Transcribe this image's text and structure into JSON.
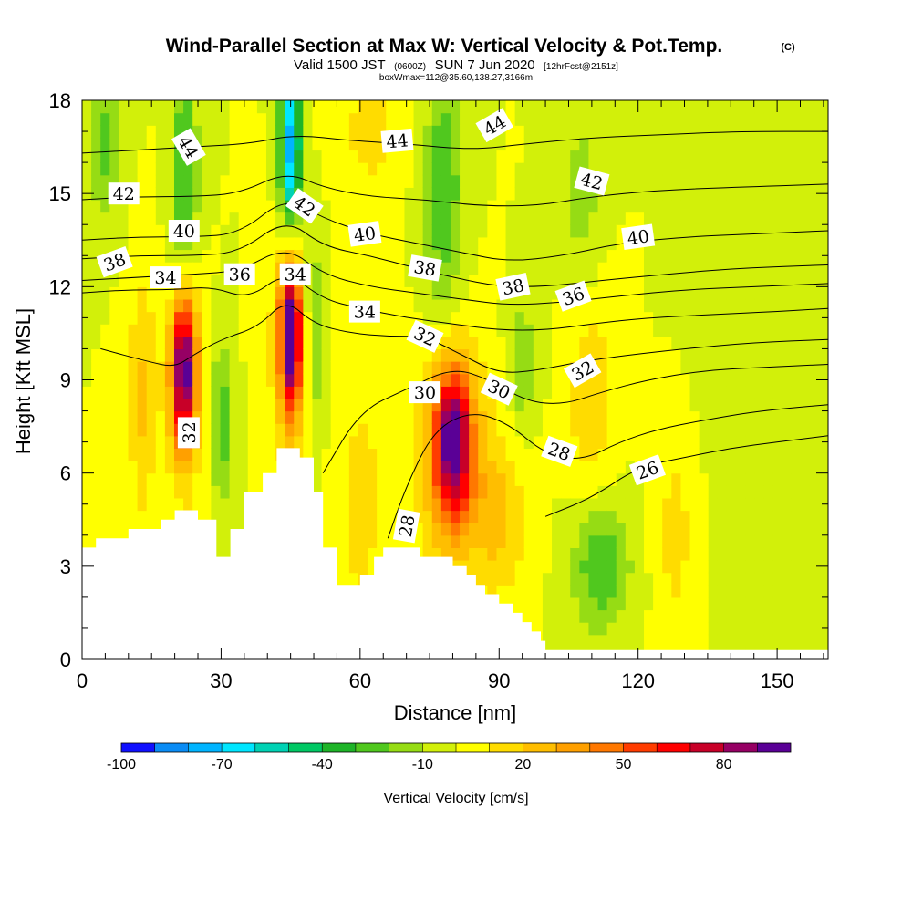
{
  "chart_data": {
    "type": "heatmap",
    "title": "Wind-Parallel Section at Max W: Vertical Velocity & Pot.Temp.",
    "title_tag": "(C)",
    "subtitle": {
      "prefix": "Valid 1500 JST",
      "utc": "(0600Z)",
      "date": "SUN 7 Jun 2020",
      "forecast": "[12hrFcst@2151z]"
    },
    "subtitle2": "boxWmax=112@35.60,138.27,3166m",
    "xlabel": "Distance [nm]",
    "ylabel": "Height [Kft MSL]",
    "xlim": [
      0,
      161
    ],
    "ylim": [
      0,
      18
    ],
    "x_ticks": [
      "0",
      "30",
      "60",
      "90",
      "120",
      "150"
    ],
    "x_tick_values": [
      0,
      30,
      60,
      90,
      120,
      150
    ],
    "y_ticks": [
      "0",
      "3",
      "6",
      "9",
      "12",
      "15",
      "18"
    ],
    "y_tick_values": [
      0,
      3,
      6,
      9,
      12,
      15,
      18
    ],
    "colorbar": {
      "label": "Vertical Velocity [cm/s]",
      "min": -100,
      "max": 100,
      "step": 10,
      "tick_labels": [
        "-100",
        "-70",
        "-40",
        "-10",
        "20",
        "50",
        "80"
      ],
      "tick_values": [
        -100,
        -70,
        -40,
        -10,
        20,
        50,
        80
      ],
      "colors": [
        "#1010ff",
        "#0a8cf5",
        "#00b4ff",
        "#00e6ff",
        "#00d2b4",
        "#00c864",
        "#1eb428",
        "#50c81e",
        "#96dc14",
        "#d2f00a",
        "#ffff00",
        "#ffdc00",
        "#ffbe00",
        "#ffa000",
        "#ff7800",
        "#ff3c00",
        "#ff0000",
        "#c80028",
        "#960064",
        "#5a0096"
      ]
    },
    "background_w": 0,
    "w_features": [
      {
        "x": 22,
        "z": 9.5,
        "sx": 2.5,
        "sz": 2.5,
        "w": 80
      },
      {
        "x": 22,
        "z": 9,
        "sx": 4,
        "sz": 3.5,
        "w": 30
      },
      {
        "x": 13,
        "z": 8.5,
        "sx": 3,
        "sz": 4,
        "w": 22
      },
      {
        "x": 45,
        "z": 10.5,
        "sx": 2.2,
        "sz": 2.5,
        "w": 80
      },
      {
        "x": 45,
        "z": 10,
        "sx": 4,
        "sz": 3.5,
        "w": 30
      },
      {
        "x": 80,
        "z": 7,
        "sx": 4,
        "sz": 2.5,
        "w": 75
      },
      {
        "x": 80,
        "z": 6.5,
        "sx": 8,
        "sz": 3.5,
        "w": 30
      },
      {
        "x": 60,
        "z": 5,
        "sx": 4,
        "sz": 3,
        "w": 20
      },
      {
        "x": 110,
        "z": 8.5,
        "sx": 5,
        "sz": 3,
        "w": 20
      },
      {
        "x": 128,
        "z": 4,
        "sx": 4,
        "sz": 3,
        "w": 15
      },
      {
        "x": 90,
        "z": 4.5,
        "sx": 6,
        "sz": 2.5,
        "w": 20
      },
      {
        "x": 45,
        "z": 16.5,
        "sx": 2.2,
        "sz": 3,
        "w": -75
      },
      {
        "x": 22,
        "z": 15,
        "sx": 3,
        "sz": 5,
        "w": -30
      },
      {
        "x": 30,
        "z": 7.5,
        "sx": 2,
        "sz": 2.5,
        "w": -30
      },
      {
        "x": 50,
        "z": 10.5,
        "sx": 2,
        "sz": 3,
        "w": -25
      },
      {
        "x": 78,
        "z": 15,
        "sx": 4,
        "sz": 4,
        "w": -30
      },
      {
        "x": 112,
        "z": 3,
        "sx": 6,
        "sz": 2,
        "w": -30
      },
      {
        "x": 108,
        "z": 15,
        "sx": 4,
        "sz": 3,
        "w": -15
      },
      {
        "x": 5,
        "z": 16.5,
        "sx": 4,
        "sz": 2,
        "w": -25
      },
      {
        "x": 95,
        "z": 9.5,
        "sx": 3,
        "sz": 2,
        "w": -20
      },
      {
        "x": 150,
        "z": 9,
        "sx": 12,
        "sz": 5,
        "w": -8
      },
      {
        "x": 62,
        "z": 17,
        "sx": 6,
        "sz": 2,
        "w": 15
      }
    ],
    "terrain": [
      [
        0,
        3.6
      ],
      [
        3,
        3.6
      ],
      [
        3,
        3.9
      ],
      [
        10,
        3.9
      ],
      [
        10,
        4.2
      ],
      [
        17,
        4.2
      ],
      [
        17,
        4.5
      ],
      [
        20,
        4.5
      ],
      [
        20,
        4.8
      ],
      [
        25,
        4.8
      ],
      [
        25,
        4.5
      ],
      [
        29,
        4.5
      ],
      [
        29,
        3.3
      ],
      [
        32,
        3.3
      ],
      [
        32,
        4.2
      ],
      [
        35,
        4.2
      ],
      [
        35,
        5.4
      ],
      [
        39,
        5.4
      ],
      [
        39,
        6.0
      ],
      [
        42,
        6.0
      ],
      [
        42,
        6.8
      ],
      [
        45,
        6.8
      ],
      [
        45,
        6.8
      ],
      [
        47,
        6.8
      ],
      [
        47,
        6.5
      ],
      [
        50,
        6.5
      ],
      [
        50,
        5.4
      ],
      [
        52,
        5.4
      ],
      [
        52,
        3.6
      ],
      [
        55,
        3.6
      ],
      [
        55,
        2.4
      ],
      [
        60,
        2.4
      ],
      [
        60,
        2.7
      ],
      [
        63,
        2.7
      ],
      [
        63,
        3.3
      ],
      [
        65,
        3.3
      ],
      [
        65,
        3.6
      ],
      [
        73,
        3.6
      ],
      [
        73,
        3.3
      ],
      [
        80,
        3.3
      ],
      [
        80,
        3.0
      ],
      [
        83,
        3.0
      ],
      [
        83,
        2.7
      ],
      [
        85,
        2.7
      ],
      [
        85,
        2.4
      ],
      [
        87,
        2.4
      ],
      [
        87,
        2.1
      ],
      [
        90,
        2.1
      ],
      [
        90,
        1.8
      ],
      [
        93,
        1.8
      ],
      [
        93,
        1.5
      ],
      [
        95,
        1.5
      ],
      [
        95,
        1.2
      ],
      [
        97,
        1.2
      ],
      [
        97,
        0.9
      ],
      [
        99,
        0.9
      ],
      [
        99,
        0.6
      ],
      [
        100,
        0.6
      ],
      [
        100,
        0.3
      ],
      [
        161,
        0.3
      ]
    ],
    "theta_contours": [
      {
        "value": 26,
        "points": [
          [
            100,
            4.6
          ],
          [
            110,
            5.2
          ],
          [
            120,
            6.2
          ],
          [
            130,
            6.5
          ],
          [
            140,
            6.8
          ],
          [
            150,
            7.0
          ],
          [
            161,
            7.2
          ]
        ]
      },
      {
        "value": 28,
        "points": [
          [
            66,
            3.9
          ],
          [
            70,
            5.6
          ],
          [
            76,
            7.4
          ],
          [
            84,
            8.0
          ],
          [
            92,
            7.6
          ],
          [
            100,
            6.6
          ],
          [
            108,
            6.4
          ],
          [
            116,
            7.0
          ],
          [
            124,
            7.4
          ],
          [
            134,
            7.7
          ],
          [
            146,
            8.0
          ],
          [
            161,
            8.2
          ]
        ]
      },
      {
        "value": 30,
        "points": [
          [
            52,
            6.0
          ],
          [
            60,
            8.0
          ],
          [
            70,
            8.7
          ],
          [
            80,
            9.4
          ],
          [
            88,
            9.0
          ],
          [
            96,
            8.3
          ],
          [
            104,
            8.2
          ],
          [
            112,
            8.6
          ],
          [
            122,
            9.0
          ],
          [
            134,
            9.3
          ],
          [
            146,
            9.4
          ],
          [
            161,
            9.5
          ]
        ]
      },
      {
        "value": 32,
        "points": [
          [
            4,
            10.0
          ],
          [
            14,
            9.6
          ],
          [
            20,
            9.4
          ],
          [
            24,
            9.8
          ],
          [
            30,
            10.3
          ],
          [
            38,
            10.7
          ],
          [
            44,
            11.6
          ],
          [
            50,
            10.8
          ],
          [
            58,
            10.5
          ],
          [
            66,
            10.4
          ],
          [
            74,
            10.4
          ],
          [
            82,
            9.8
          ],
          [
            90,
            9.2
          ],
          [
            98,
            9.3
          ],
          [
            108,
            9.6
          ],
          [
            118,
            9.8
          ],
          [
            130,
            10.0
          ],
          [
            145,
            10.2
          ],
          [
            161,
            10.3
          ]
        ]
      },
      {
        "value": 34,
        "points": [
          [
            0,
            11.8
          ],
          [
            10,
            11.9
          ],
          [
            20,
            11.9
          ],
          [
            28,
            12.0
          ],
          [
            36,
            11.6
          ],
          [
            44,
            12.5
          ],
          [
            52,
            11.6
          ],
          [
            60,
            11.3
          ],
          [
            70,
            11.0
          ],
          [
            80,
            10.8
          ],
          [
            90,
            10.6
          ],
          [
            100,
            10.6
          ],
          [
            110,
            10.8
          ],
          [
            122,
            11.0
          ],
          [
            136,
            11.1
          ],
          [
            150,
            11.2
          ],
          [
            161,
            11.3
          ]
        ]
      },
      {
        "value": 36,
        "points": [
          [
            0,
            12.2
          ],
          [
            12,
            12.3
          ],
          [
            24,
            12.4
          ],
          [
            34,
            12.5
          ],
          [
            44,
            13.3
          ],
          [
            52,
            12.4
          ],
          [
            62,
            12.0
          ],
          [
            72,
            11.8
          ],
          [
            82,
            11.6
          ],
          [
            92,
            11.4
          ],
          [
            104,
            11.5
          ],
          [
            116,
            11.7
          ],
          [
            130,
            11.9
          ],
          [
            145,
            12.0
          ],
          [
            161,
            12.1
          ]
        ]
      },
      {
        "value": 38,
        "points": [
          [
            0,
            12.9
          ],
          [
            12,
            13.0
          ],
          [
            24,
            13.0
          ],
          [
            34,
            13.1
          ],
          [
            44,
            14.2
          ],
          [
            52,
            13.3
          ],
          [
            62,
            13.0
          ],
          [
            72,
            12.6
          ],
          [
            80,
            12.3
          ],
          [
            90,
            12.0
          ],
          [
            100,
            12.0
          ],
          [
            112,
            12.2
          ],
          [
            126,
            12.4
          ],
          [
            142,
            12.6
          ],
          [
            161,
            12.7
          ]
        ]
      },
      {
        "value": 40,
        "points": [
          [
            0,
            13.5
          ],
          [
            12,
            13.6
          ],
          [
            24,
            13.6
          ],
          [
            34,
            13.7
          ],
          [
            44,
            14.9
          ],
          [
            52,
            14.2
          ],
          [
            62,
            13.7
          ],
          [
            72,
            13.4
          ],
          [
            82,
            13.1
          ],
          [
            92,
            12.8
          ],
          [
            104,
            13.0
          ],
          [
            116,
            13.4
          ],
          [
            130,
            13.6
          ],
          [
            145,
            13.7
          ],
          [
            161,
            13.8
          ]
        ]
      },
      {
        "value": 42,
        "points": [
          [
            0,
            14.8
          ],
          [
            12,
            14.9
          ],
          [
            24,
            14.9
          ],
          [
            34,
            15.0
          ],
          [
            44,
            15.7
          ],
          [
            52,
            15.2
          ],
          [
            62,
            14.9
          ],
          [
            74,
            14.8
          ],
          [
            86,
            14.6
          ],
          [
            98,
            14.6
          ],
          [
            110,
            14.9
          ],
          [
            124,
            15.1
          ],
          [
            140,
            15.2
          ],
          [
            161,
            15.3
          ]
        ]
      },
      {
        "value": 44,
        "points": [
          [
            0,
            16.3
          ],
          [
            12,
            16.4
          ],
          [
            24,
            16.5
          ],
          [
            36,
            16.6
          ],
          [
            46,
            16.9
          ],
          [
            58,
            16.7
          ],
          [
            70,
            16.6
          ],
          [
            84,
            16.4
          ],
          [
            96,
            16.6
          ],
          [
            110,
            16.8
          ],
          [
            126,
            16.9
          ],
          [
            142,
            17.0
          ],
          [
            161,
            17.0
          ]
        ]
      }
    ],
    "contour_labels": [
      {
        "text": "44",
        "x": 23,
        "z": 16.5,
        "rotate": 60
      },
      {
        "text": "44",
        "x": 68,
        "z": 16.7,
        "rotate": -5
      },
      {
        "text": "44",
        "x": 89,
        "z": 17.2,
        "rotate": -30
      },
      {
        "text": "42",
        "x": 9,
        "z": 15.0,
        "rotate": 0
      },
      {
        "text": "42",
        "x": 48,
        "z": 14.6,
        "rotate": 35
      },
      {
        "text": "42",
        "x": 110,
        "z": 15.4,
        "rotate": 15
      },
      {
        "text": "40",
        "x": 22,
        "z": 13.8,
        "rotate": 0
      },
      {
        "text": "40",
        "x": 61,
        "z": 13.7,
        "rotate": -8
      },
      {
        "text": "40",
        "x": 120,
        "z": 13.6,
        "rotate": -8
      },
      {
        "text": "38",
        "x": 7,
        "z": 12.8,
        "rotate": -20
      },
      {
        "text": "38",
        "x": 74,
        "z": 12.6,
        "rotate": 10
      },
      {
        "text": "38",
        "x": 93,
        "z": 12.0,
        "rotate": -12
      },
      {
        "text": "34",
        "x": 18,
        "z": 12.3,
        "rotate": 0
      },
      {
        "text": "36",
        "x": 34,
        "z": 12.4,
        "rotate": 0
      },
      {
        "text": "34",
        "x": 46,
        "z": 12.4,
        "rotate": 0
      },
      {
        "text": "36",
        "x": 106,
        "z": 11.7,
        "rotate": -20
      },
      {
        "text": "34",
        "x": 61,
        "z": 11.2,
        "rotate": 0
      },
      {
        "text": "32",
        "x": 74,
        "z": 10.4,
        "rotate": 25
      },
      {
        "text": "32",
        "x": 108,
        "z": 9.3,
        "rotate": -30
      },
      {
        "text": "30",
        "x": 74,
        "z": 8.6,
        "rotate": 0
      },
      {
        "text": "30",
        "x": 90,
        "z": 8.7,
        "rotate": 25
      },
      {
        "text": "32",
        "x": 23,
        "z": 7.3,
        "rotate": -90
      },
      {
        "text": "28",
        "x": 103,
        "z": 6.7,
        "rotate": 20
      },
      {
        "text": "26",
        "x": 122,
        "z": 6.1,
        "rotate": -20
      },
      {
        "text": "28",
        "x": 70,
        "z": 4.3,
        "rotate": -80
      }
    ]
  }
}
